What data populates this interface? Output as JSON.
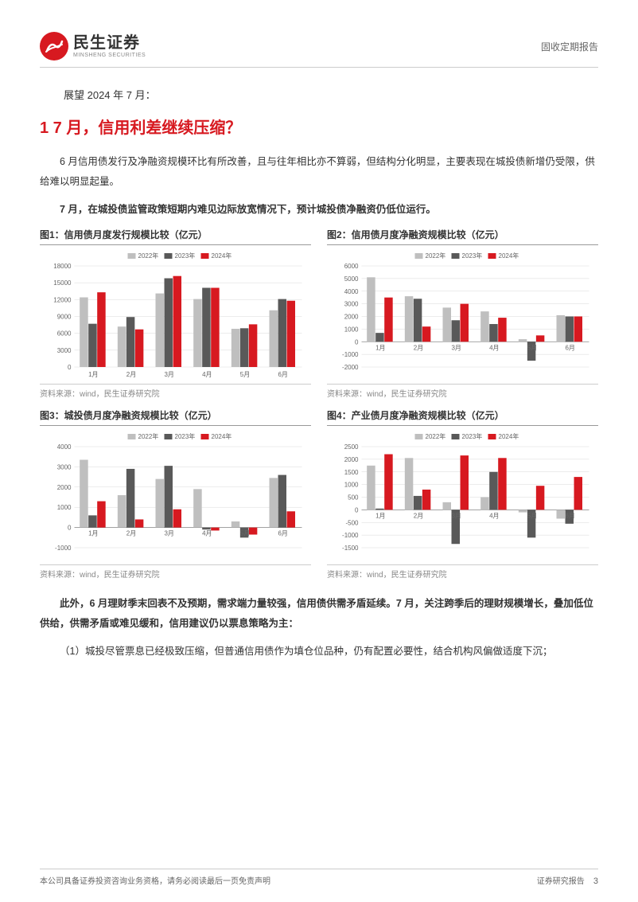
{
  "header": {
    "logo_cn": "民生证券",
    "logo_en": "MINSHENG SECURITIES",
    "right": "固收定期报告"
  },
  "subhead": "展望 2024 年 7 月：",
  "section_title": "1 7 月，信用利差继续压缩？",
  "p1": "6 月信用债发行及净融资规模环比有所改善，且与往年相比亦不算弱，但结构分化明显，主要表现在城投债新增仍受限，供给难以明显起量。",
  "p2": "7 月，在城投债监管政策短期内难见边际放宽情况下，预计城投债净融资仍低位运行。",
  "p3": "此外，6 月理财季末回表不及预期，需求端力量较强，信用债供需矛盾延续。7 月，关注跨季后的理财规模增长，叠加低位供给，供需矛盾或难见缓和，信用建议仍以票息策略为主：",
  "p4": "（1）城投尽管票息已经极致压缩，但普通信用债作为填仓位品种，仍有配置必要性，结合机构风偏做适度下沉；",
  "legend_labels": [
    "2022年",
    "2023年",
    "2024年"
  ],
  "colors": {
    "s2022": "#bfbfbf",
    "s2023": "#595959",
    "s2024": "#d71920",
    "grid": "#d9d9d9",
    "axis": "#888",
    "text": "#666"
  },
  "chart1": {
    "title": "图1：信用债月度发行规模比较（亿元）",
    "source": "资料来源：wind，民生证券研究院",
    "categories": [
      "1月",
      "2月",
      "3月",
      "4月",
      "5月",
      "6月"
    ],
    "series": [
      {
        "key": "s2022",
        "values": [
          12400,
          7200,
          13100,
          12100,
          6800,
          10100
        ]
      },
      {
        "key": "s2023",
        "values": [
          7700,
          8900,
          15800,
          14100,
          6900,
          12100
        ]
      },
      {
        "key": "s2024",
        "values": [
          13300,
          6700,
          16200,
          14100,
          7600,
          11800
        ]
      }
    ],
    "ymin": 0,
    "ymax": 18000,
    "ystep": 3000
  },
  "chart2": {
    "title": "图2：信用债月度净融资规模比较（亿元）",
    "source": "资料来源：wind，民生证券研究院",
    "categories": [
      "1月",
      "2月",
      "3月",
      "4月",
      "5月",
      "6月"
    ],
    "series": [
      {
        "key": "s2022",
        "values": [
          5100,
          3600,
          2700,
          2400,
          200,
          2100
        ]
      },
      {
        "key": "s2023",
        "values": [
          700,
          3400,
          1700,
          1400,
          -1500,
          2000
        ]
      },
      {
        "key": "s2024",
        "values": [
          3500,
          1200,
          3000,
          1900,
          500,
          2000
        ]
      }
    ],
    "ymin": -2000,
    "ymax": 6000,
    "ystep": 1000
  },
  "chart3": {
    "title": "图3：城投债月度净融资规模比较（亿元）",
    "source": "资料来源：wind，民生证券研究院",
    "categories": [
      "1月",
      "2月",
      "3月",
      "4月",
      "5月",
      "6月"
    ],
    "series": [
      {
        "key": "s2022",
        "values": [
          3350,
          1600,
          2400,
          1900,
          300,
          2450
        ]
      },
      {
        "key": "s2023",
        "values": [
          600,
          2900,
          3050,
          -100,
          -500,
          2600
        ]
      },
      {
        "key": "s2024",
        "values": [
          1300,
          400,
          900,
          -150,
          -350,
          800
        ]
      }
    ],
    "ymin": -1000,
    "ymax": 4000,
    "ystep": 1000
  },
  "chart4": {
    "title": "图4：产业债月度净融资规模比较（亿元）",
    "source": "资料来源：wind，民生证券研究院",
    "categories": [
      "1月",
      "2月",
      "3月",
      "4月",
      "5月",
      "6月"
    ],
    "series": [
      {
        "key": "s2022",
        "values": [
          1750,
          2050,
          300,
          500,
          -100,
          -350
        ]
      },
      {
        "key": "s2023",
        "values": [
          50,
          550,
          -1350,
          1500,
          -1100,
          -550
        ]
      },
      {
        "key": "s2024",
        "values": [
          2200,
          800,
          2150,
          2050,
          950,
          1300
        ]
      }
    ],
    "ymin": -1500,
    "ymax": 2500,
    "ystep": 500
  },
  "footer": {
    "left": "本公司具备证券投资咨询业务资格，请务必阅读最后一页免责声明",
    "right": "证券研究报告",
    "page": "3"
  }
}
